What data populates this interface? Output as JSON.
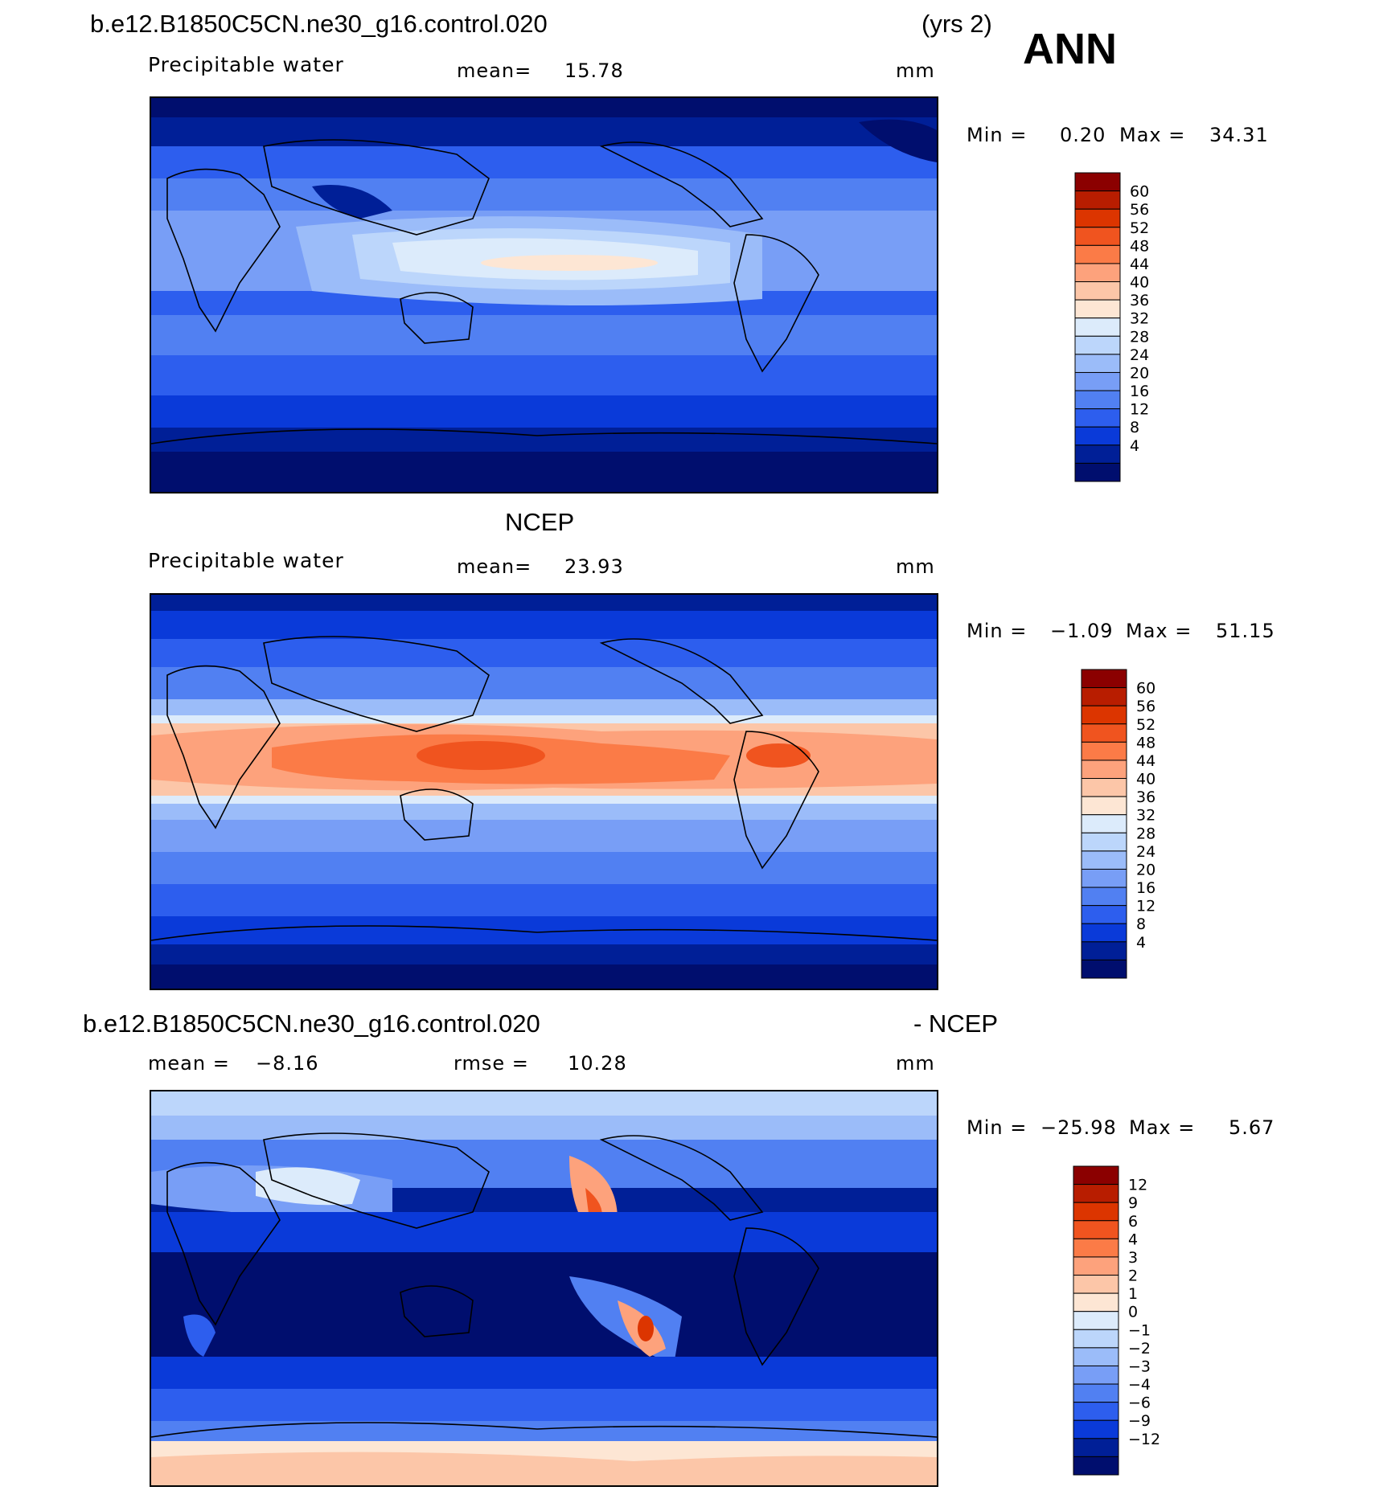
{
  "corner_label": "ANN",
  "panels": [
    {
      "title_left": "b.e12.B1850C5CN.ne30_g16.control.020",
      "title_right": "(yrs 2)",
      "variable": "Precipitable water",
      "stat_label": "mean=",
      "stat_value": "15.78",
      "units": "mm",
      "minmax_label": "Min =",
      "min": "0.20",
      "max_label": "Max =",
      "max": "34.31",
      "colorbar": {
        "labels": [
          "60",
          "56",
          "52",
          "48",
          "44",
          "40",
          "36",
          "32",
          "28",
          "24",
          "20",
          "16",
          "12",
          "8",
          "4"
        ],
        "colors": [
          "#8b0000",
          "#b81d00",
          "#dc3500",
          "#f0541f",
          "#fb7b47",
          "#fda27c",
          "#fcc6a8",
          "#fde6d4",
          "#dcebfb",
          "#bcd6fb",
          "#9bbcf9",
          "#789ef6",
          "#5180f2",
          "#2d5eee",
          "#0a3ad9",
          "#001f97",
          "#000e6e"
        ]
      }
    },
    {
      "title_center": "NCEP",
      "variable": "Precipitable water",
      "stat_label": "mean=",
      "stat_value": "23.93",
      "units": "mm",
      "minmax_label": "Min =",
      "min": "−1.09",
      "max_label": "Max =",
      "max": "51.15",
      "colorbar": {
        "labels": [
          "60",
          "56",
          "52",
          "48",
          "44",
          "40",
          "36",
          "32",
          "28",
          "24",
          "20",
          "16",
          "12",
          "8",
          "4"
        ],
        "colors": [
          "#8b0000",
          "#b81d00",
          "#dc3500",
          "#f0541f",
          "#fb7b47",
          "#fda27c",
          "#fcc6a8",
          "#fde6d4",
          "#dcebfb",
          "#bcd6fb",
          "#9bbcf9",
          "#789ef6",
          "#5180f2",
          "#2d5eee",
          "#0a3ad9",
          "#001f97",
          "#000e6e"
        ]
      }
    },
    {
      "title_left": "b.e12.B1850C5CN.ne30_g16.control.020",
      "title_right": "- NCEP",
      "stat_label": "mean =",
      "stat_value": "−8.16",
      "rmse_label": "rmse =",
      "rmse_value": "10.28",
      "units": "mm",
      "minmax_label": "Min =",
      "min": "−25.98",
      "max_label": "Max =",
      "max": "5.67",
      "colorbar": {
        "labels": [
          "12",
          "9",
          "6",
          "4",
          "3",
          "2",
          "1",
          "0",
          "−1",
          "−2",
          "−3",
          "−4",
          "−6",
          "−9",
          "−12"
        ],
        "colors": [
          "#8b0000",
          "#b81d00",
          "#dc3500",
          "#f0541f",
          "#fb7b47",
          "#fda27c",
          "#fcc6a8",
          "#fde6d4",
          "#dcebfb",
          "#bcd6fb",
          "#9bbcf9",
          "#789ef6",
          "#5180f2",
          "#2d5eee",
          "#0a3ad9",
          "#001f97",
          "#000e6e"
        ]
      }
    }
  ]
}
